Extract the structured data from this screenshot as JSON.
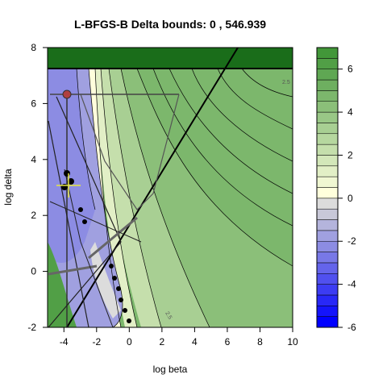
{
  "chart_data": {
    "type": "heatmap",
    "title": "L-BFGS-B Delta bounds:  0 , 546.939",
    "xlabel": "log beta",
    "ylabel": "log delta",
    "xlim": [
      -5,
      10
    ],
    "ylim": [
      -2,
      8
    ],
    "x_ticks": [
      "-4",
      "-2",
      "0",
      "2",
      "4",
      "6",
      "8",
      "10"
    ],
    "y_ticks": [
      "-2",
      "0",
      "2",
      "4",
      "6",
      "8"
    ],
    "colorbar": {
      "range": [
        -6,
        7
      ],
      "ticks": [
        "-6",
        "-4",
        "-2",
        "0",
        "2",
        "4",
        "6"
      ],
      "levels": [
        -6,
        -5.5,
        -5,
        -4.5,
        -4,
        -3.5,
        -3,
        -2.5,
        -2,
        -1.5,
        -1,
        -0.5,
        0,
        0.5,
        1,
        1.5,
        2,
        2.5,
        3,
        3.5,
        4,
        4.5,
        5,
        5.5,
        6,
        6.5,
        7
      ],
      "colors": [
        "#0000ff",
        "#1414fb",
        "#2828f7",
        "#3c3cf3",
        "#5050ef",
        "#6464eb",
        "#7878e7",
        "#8c8ce3",
        "#a0a0e0",
        "#b4b4dc",
        "#c8c8d8",
        "#dcdcdc",
        "#ffffdc",
        "#f0f7d2",
        "#e2efc6",
        "#d3e7b9",
        "#c5dfac",
        "#b6d79f",
        "#a8cf93",
        "#99c786",
        "#8bbf79",
        "#7cb76c",
        "#6eaf60",
        "#5fa753",
        "#519f46",
        "#429739",
        "#1a6d1a"
      ]
    },
    "contour_labels": [
      "2.5",
      "2.5"
    ]
  }
}
